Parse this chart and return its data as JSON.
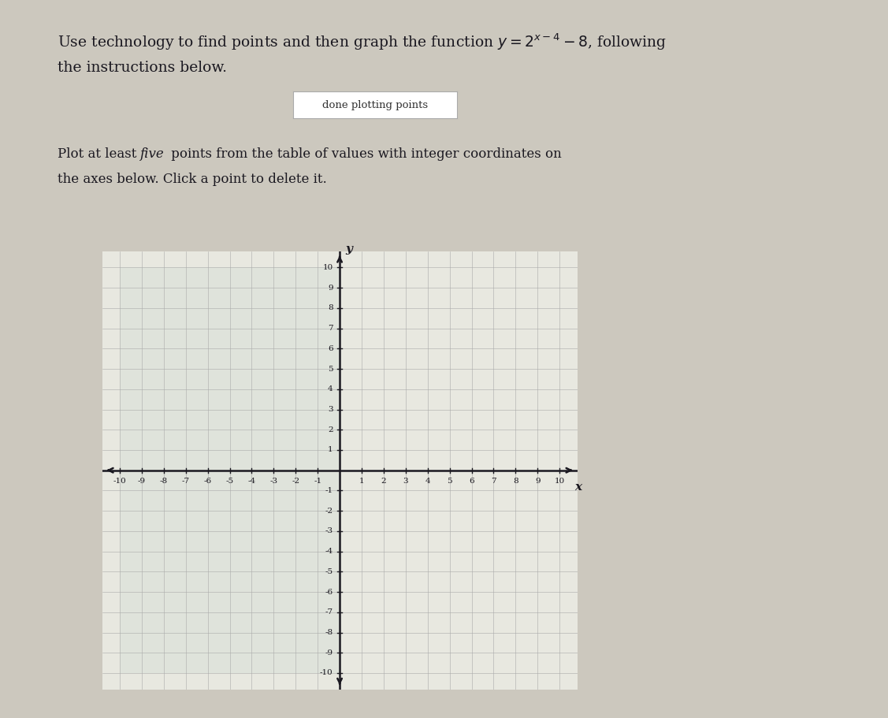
{
  "title_line1": "Use technology to find points and then graph the function $y = 2^{x-4} - 8$, following",
  "title_line2": "the instructions below.",
  "button_text": "done plotting points",
  "instruction_pre": "Plot at least ",
  "instruction_italic": "five",
  "instruction_post": " points from the table of values with integer coordinates on",
  "instruction_line2": "the axes below. Click a point to delete it.",
  "xlim": [
    -10,
    10
  ],
  "ylim": [
    -10,
    10
  ],
  "xticks": [
    -10,
    -9,
    -8,
    -7,
    -6,
    -5,
    -4,
    -3,
    -2,
    -1,
    1,
    2,
    3,
    4,
    5,
    6,
    7,
    8,
    9,
    10
  ],
  "yticks": [
    -10,
    -9,
    -8,
    -7,
    -6,
    -5,
    -4,
    -3,
    -2,
    -1,
    1,
    2,
    3,
    4,
    5,
    6,
    7,
    8,
    9,
    10
  ],
  "xlabel": "x",
  "ylabel": "y",
  "bg_color": "#ccc8be",
  "grid_color": "#c8cfc8",
  "grid_line_color": "#aaaaaa",
  "axis_color": "#1a1820",
  "plot_bg_left": "#dde4dc",
  "plot_bg_right": "#e8e4de",
  "button_bg": "#ffffff",
  "button_border": "#aaaaaa",
  "title_color": "#1a1820",
  "tick_fontsize": 7.5,
  "label_fontsize": 11,
  "title_fontsize": 13.5,
  "instruction_fontsize": 12
}
